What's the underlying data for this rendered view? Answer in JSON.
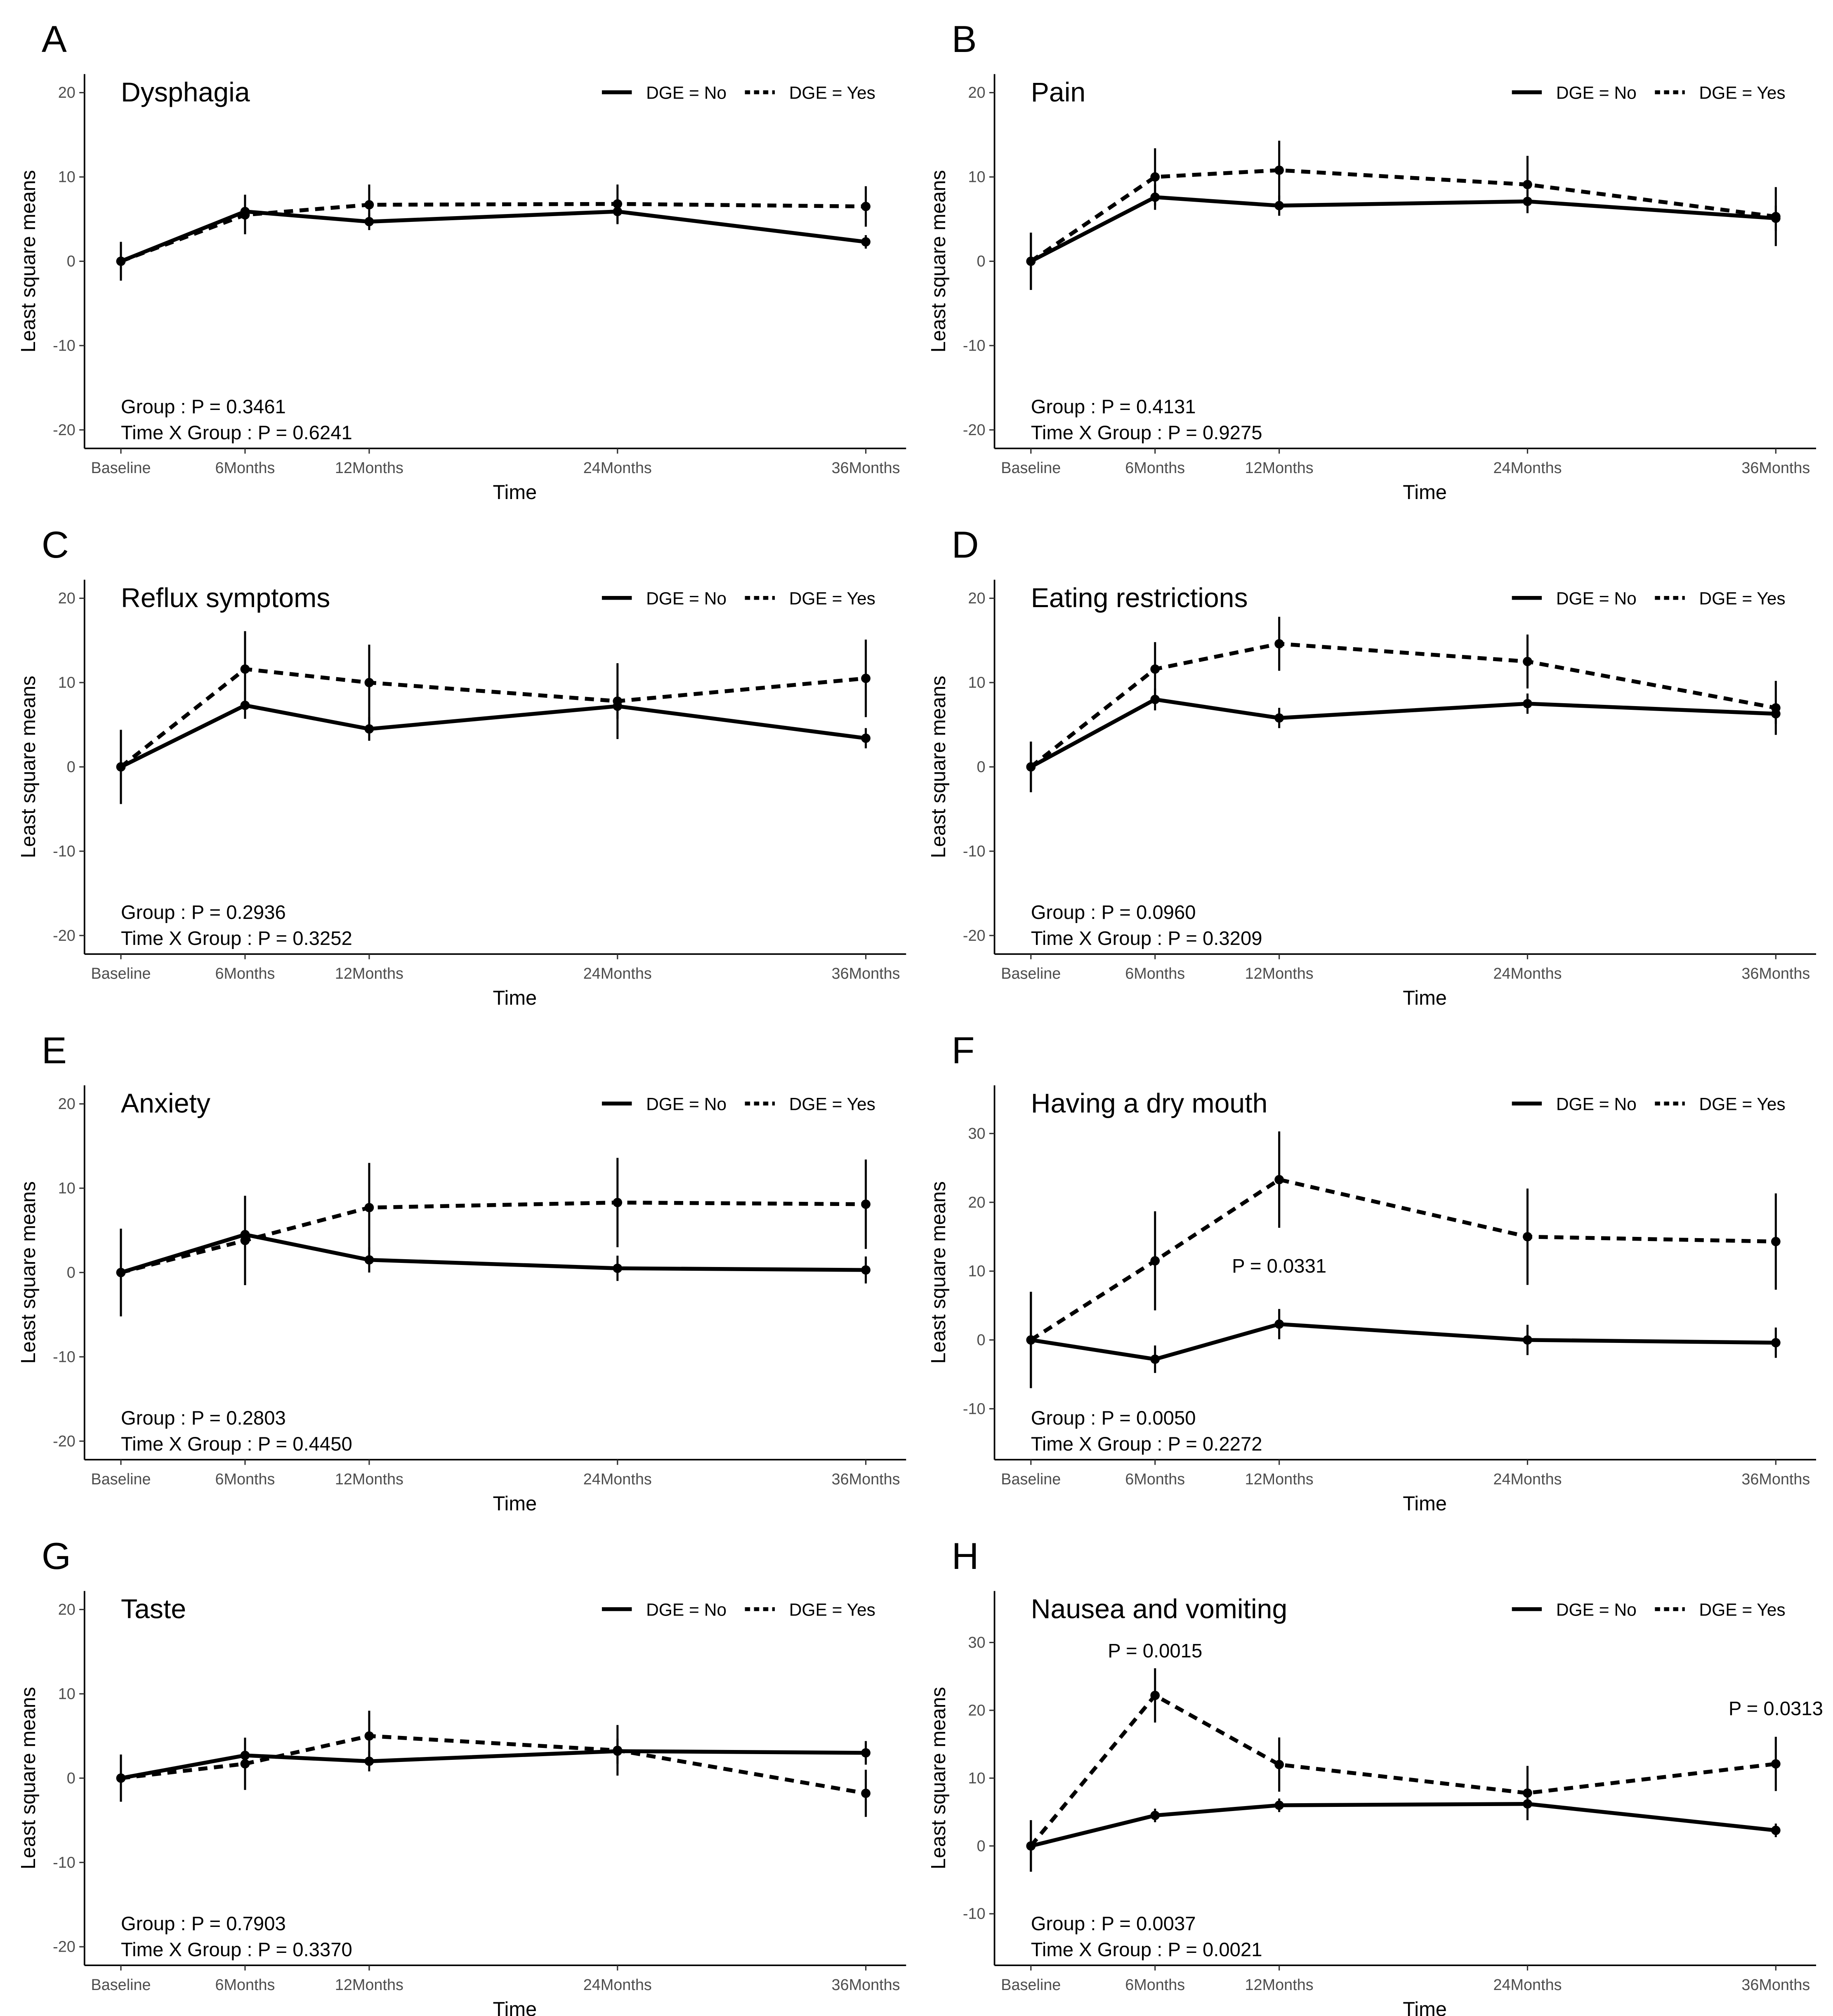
{
  "chart_data": [
    {
      "letter": "A",
      "type": "line",
      "title": "Dysphagia",
      "xlabel": "Time",
      "ylabel": "Least square means",
      "x": [
        0,
        6,
        12,
        24,
        36
      ],
      "xticks": [
        "Baseline",
        "6Months",
        "12Months",
        "24Months",
        "36Months"
      ],
      "ylim": [
        -22.2,
        22.2
      ],
      "yticks": [
        -20,
        -10,
        0,
        10,
        20
      ],
      "legend": [
        "DGE = No",
        "DGE = Yes"
      ],
      "legend_position": "top-right",
      "series": [
        {
          "name": "DGE = No",
          "style": "solid",
          "values": [
            0,
            5.9,
            4.7,
            5.9,
            2.3
          ],
          "ci": [
            2.3,
            2,
            1,
            1.5,
            0.8
          ]
        },
        {
          "name": "DGE = Yes",
          "style": "dashed",
          "values": [
            0,
            5.5,
            6.7,
            6.8,
            6.5
          ],
          "ci": [
            2,
            2.3,
            2.4,
            2.3,
            2.4
          ]
        }
      ],
      "stats": [
        "Group : P = 0.3461",
        "Time X Group : P = 0.6241"
      ],
      "annotations": []
    },
    {
      "letter": "B",
      "type": "line",
      "title": "Pain",
      "xlabel": "Time",
      "ylabel": "Least square means",
      "x": [
        0,
        6,
        12,
        24,
        36
      ],
      "xticks": [
        "Baseline",
        "6Months",
        "12Months",
        "24Months",
        "36Months"
      ],
      "ylim": [
        -22.2,
        22.2
      ],
      "yticks": [
        -20,
        -10,
        0,
        10,
        20
      ],
      "legend": [
        "DGE = No",
        "DGE = Yes"
      ],
      "legend_position": "top-right",
      "series": [
        {
          "name": "DGE = No",
          "style": "solid",
          "values": [
            0,
            7.6,
            6.6,
            7.1,
            5.1
          ],
          "ci": [
            3.4,
            1.5,
            1.2,
            1.3,
            1.5
          ]
        },
        {
          "name": "DGE = Yes",
          "style": "dashed",
          "values": [
            0,
            10.0,
            10.8,
            9.1,
            5.3
          ],
          "ci": [
            3.4,
            3.4,
            3.5,
            3.4,
            3.5
          ]
        }
      ],
      "stats": [
        "Group : P = 0.4131",
        "Time X Group : P = 0.9275"
      ],
      "annotations": []
    },
    {
      "letter": "C",
      "type": "line",
      "title": "Reflux symptoms",
      "xlabel": "Time",
      "ylabel": "Least square means",
      "x": [
        0,
        6,
        12,
        24,
        36
      ],
      "xticks": [
        "Baseline",
        "6Months",
        "12Months",
        "24Months",
        "36Months"
      ],
      "ylim": [
        -22.2,
        22.2
      ],
      "yticks": [
        -20,
        -10,
        0,
        10,
        20
      ],
      "legend": [
        "DGE = No",
        "DGE = Yes"
      ],
      "legend_position": "top-right",
      "series": [
        {
          "name": "DGE = No",
          "style": "solid",
          "values": [
            0,
            7.3,
            4.5,
            7.2,
            3.4
          ],
          "ci": [
            4.4,
            1.6,
            1.4,
            1.5,
            1.2
          ]
        },
        {
          "name": "DGE = Yes",
          "style": "dashed",
          "values": [
            0,
            11.6,
            10.0,
            7.8,
            10.5
          ],
          "ci": [
            4.4,
            4.5,
            4.5,
            4.5,
            4.6
          ]
        }
      ],
      "stats": [
        "Group : P = 0.2936",
        "Time X Group : P = 0.3252"
      ],
      "annotations": []
    },
    {
      "letter": "D",
      "type": "line",
      "title": "Eating restrictions",
      "xlabel": "Time",
      "ylabel": "Least square means",
      "x": [
        0,
        6,
        12,
        24,
        36
      ],
      "xticks": [
        "Baseline",
        "6Months",
        "12Months",
        "24Months",
        "36Months"
      ],
      "ylim": [
        -22.2,
        22.2
      ],
      "yticks": [
        -20,
        -10,
        0,
        10,
        20
      ],
      "legend": [
        "DGE = No",
        "DGE = Yes"
      ],
      "legend_position": "top-right",
      "series": [
        {
          "name": "DGE = No",
          "style": "solid",
          "values": [
            0,
            8.0,
            5.8,
            7.5,
            6.3
          ],
          "ci": [
            3,
            1.3,
            1.2,
            1.2,
            1.2
          ]
        },
        {
          "name": "DGE = Yes",
          "style": "dashed",
          "values": [
            0,
            11.6,
            14.6,
            12.5,
            7.0
          ],
          "ci": [
            3,
            3.2,
            3.2,
            3.2,
            3.2
          ]
        }
      ],
      "stats": [
        "Group : P = 0.0960",
        "Time X Group : P = 0.3209"
      ],
      "annotations": []
    },
    {
      "letter": "E",
      "type": "line",
      "title": "Anxiety",
      "xlabel": "Time",
      "ylabel": "Least square means",
      "x": [
        0,
        6,
        12,
        24,
        36
      ],
      "xticks": [
        "Baseline",
        "6Months",
        "12Months",
        "24Months",
        "36Months"
      ],
      "ylim": [
        -22.2,
        22.2
      ],
      "yticks": [
        -20,
        -10,
        0,
        10,
        20
      ],
      "legend": [
        "DGE = No",
        "DGE = Yes"
      ],
      "legend_position": "top-right",
      "series": [
        {
          "name": "DGE = No",
          "style": "solid",
          "values": [
            0,
            4.5,
            1.5,
            0.5,
            0.3
          ],
          "ci": [
            5.2,
            1.8,
            1.5,
            1.5,
            1.6
          ]
        },
        {
          "name": "DGE = Yes",
          "style": "dashed",
          "values": [
            0,
            3.8,
            7.7,
            8.3,
            8.1
          ],
          "ci": [
            5.2,
            5.3,
            5.3,
            5.3,
            5.3
          ]
        }
      ],
      "stats": [
        "Group : P = 0.2803",
        "Time X Group : P = 0.4450"
      ],
      "annotations": []
    },
    {
      "letter": "F",
      "type": "line",
      "title": "Having a dry mouth",
      "xlabel": "Time",
      "ylabel": "Least square means",
      "x": [
        0,
        6,
        12,
        24,
        36
      ],
      "xticks": [
        "Baseline",
        "6Months",
        "12Months",
        "24Months",
        "36Months"
      ],
      "ylim": [
        -17.4,
        37
      ],
      "yticks": [
        -10,
        0,
        10,
        20,
        30
      ],
      "legend": [
        "DGE = No",
        "DGE = Yes"
      ],
      "legend_position": "top-right",
      "series": [
        {
          "name": "DGE = No",
          "style": "solid",
          "values": [
            0,
            -2.8,
            2.3,
            0,
            -0.4
          ],
          "ci": [
            7,
            2,
            2.2,
            2.2,
            2.2
          ]
        },
        {
          "name": "DGE = Yes",
          "style": "dashed",
          "values": [
            0,
            11.5,
            23.3,
            15.0,
            14.3
          ],
          "ci": [
            7,
            7.2,
            7,
            7,
            7
          ]
        }
      ],
      "stats": [
        "Group : P = 0.0050",
        "Time X Group : P = 0.2272"
      ],
      "annotations": [
        {
          "text": "P = 0.0331",
          "x": 12,
          "y": 9.8
        }
      ]
    },
    {
      "letter": "G",
      "type": "line",
      "title": "Taste",
      "xlabel": "Time",
      "ylabel": "Least square means",
      "x": [
        0,
        6,
        12,
        24,
        36
      ],
      "xticks": [
        "Baseline",
        "6Months",
        "12Months",
        "24Months",
        "36Months"
      ],
      "ylim": [
        -22.2,
        22.2
      ],
      "yticks": [
        -20,
        -10,
        0,
        10,
        20
      ],
      "legend": [
        "DGE = No",
        "DGE = Yes"
      ],
      "legend_position": "top-right",
      "series": [
        {
          "name": "DGE = No",
          "style": "solid",
          "values": [
            0,
            2.7,
            2.0,
            3.2,
            3.0
          ],
          "ci": [
            2.8,
            1.5,
            1.2,
            1.5,
            1.4
          ]
        },
        {
          "name": "DGE = Yes",
          "style": "dashed",
          "values": [
            0,
            1.7,
            5.0,
            3.3,
            -1.8
          ],
          "ci": [
            2.8,
            3.1,
            3,
            3,
            2.8
          ]
        }
      ],
      "stats": [
        "Group : P = 0.7903",
        "Time X Group : P = 0.3370"
      ],
      "annotations": []
    },
    {
      "letter": "H",
      "type": "line",
      "title": "Nausea and vomiting",
      "xlabel": "Time",
      "ylabel": "Least square means",
      "x": [
        0,
        6,
        12,
        24,
        36
      ],
      "xticks": [
        "Baseline",
        "6Months",
        "12Months",
        "24Months",
        "36Months"
      ],
      "ylim": [
        -17.6,
        37.6
      ],
      "yticks": [
        -10,
        0,
        10,
        20,
        30
      ],
      "legend": [
        "DGE = No",
        "DGE = Yes"
      ],
      "legend_position": "top-right",
      "series": [
        {
          "name": "DGE = No",
          "style": "solid",
          "values": [
            0,
            4.5,
            6.0,
            6.2,
            2.3
          ],
          "ci": [
            3.8,
            1,
            1,
            1.2,
            1
          ]
        },
        {
          "name": "DGE = Yes",
          "style": "dashed",
          "values": [
            0,
            22.2,
            12.0,
            7.8,
            12.1
          ],
          "ci": [
            3.8,
            4,
            4,
            4,
            4
          ]
        }
      ],
      "stats": [
        "Group : P = 0.0037",
        "Time X Group : P = 0.0021"
      ],
      "annotations": [
        {
          "text": "P = 0.0015",
          "x": 6,
          "y": 27.8
        },
        {
          "text": "P = 0.0313",
          "x": 36,
          "y": 19.3
        }
      ]
    }
  ]
}
